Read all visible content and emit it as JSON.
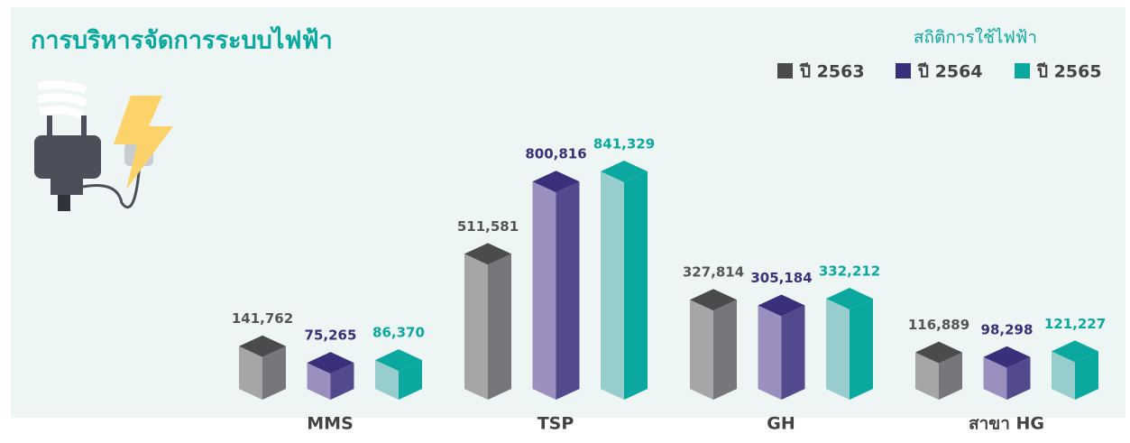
{
  "chart_data": {
    "type": "bar3d",
    "title": "การบริหารจัดการระบบไฟฟ้า",
    "subtitle": "สถิติการใช้ไฟฟ้า",
    "categories": [
      "MMS",
      "TSP",
      "GH",
      "สาขา HG"
    ],
    "series": [
      {
        "name": "ปี 2563",
        "color": "#4b4b4d",
        "values": [
          141762,
          511581,
          327814,
          116889
        ],
        "value_labels": [
          "141,762",
          "511,581",
          "327,814",
          "116,889"
        ]
      },
      {
        "name": "ปี 2564",
        "color": "#3a2f7a",
        "values": [
          75265,
          800816,
          305184,
          98298
        ],
        "value_labels": [
          "75,265",
          "800,816",
          "305,184",
          "98,298"
        ]
      },
      {
        "name": "ปี 2565",
        "color": "#0aa89e",
        "values": [
          86370,
          841329,
          332212,
          121227
        ],
        "value_labels": [
          "86,370",
          "841,329",
          "332,212",
          "121,227"
        ]
      }
    ]
  }
}
